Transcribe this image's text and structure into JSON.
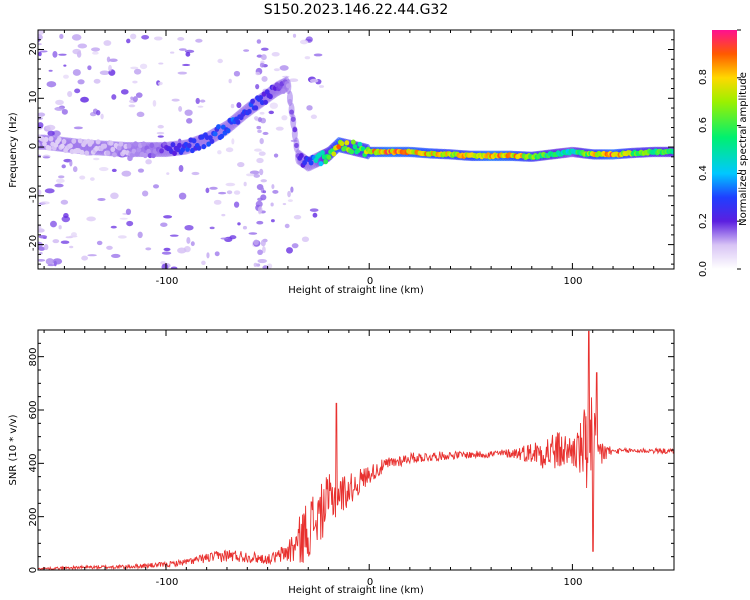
{
  "title": "S150.2023.146.22.44.G32",
  "colors": {
    "snr_line": "#e8312f",
    "spectrum_track": "#ff2a2a"
  },
  "chart_data": [
    {
      "type": "heatmap",
      "title": "S150.2023.146.22.44.G32",
      "xlabel": "Height of straight line (km)",
      "ylabel": "Frequency (Hz)",
      "xlim": [
        -163,
        150
      ],
      "ylim": [
        -25,
        24
      ],
      "xticks": [
        "-100",
        "0",
        "100"
      ],
      "yticks": [
        "20",
        "10",
        "0",
        "-10",
        "-20"
      ],
      "colorbar": {
        "label": "Normalized spectral amplitude",
        "range": [
          0,
          1
        ],
        "ticks": [
          "0.0",
          "0.2",
          "0.4",
          "0.6",
          "0.8"
        ],
        "colormap": "rainbow"
      },
      "track": {
        "x": [
          -160,
          -140,
          -120,
          -100,
          -90,
          -80,
          -70,
          -60,
          -50,
          -45,
          -40,
          -35,
          -30,
          -25,
          -20,
          -15,
          -10,
          -5,
          0,
          10,
          20,
          30,
          40,
          50,
          60,
          70,
          80,
          90,
          100,
          110,
          120,
          130,
          140,
          150
        ],
        "freq": [
          1,
          0,
          -0.5,
          -0.5,
          0,
          1.5,
          4,
          7.5,
          10.5,
          12,
          13,
          -2,
          -3.5,
          -2.5,
          -1.5,
          0.5,
          0,
          -0.5,
          -1,
          -1,
          -1,
          -1.3,
          -1.5,
          -1.8,
          -1.8,
          -1.8,
          -2,
          -1.5,
          -1,
          -1.5,
          -1.5,
          -1.2,
          -1,
          -1
        ],
        "amplitude": [
          0.1,
          0.1,
          0.12,
          0.2,
          0.3,
          0.3,
          0.35,
          0.32,
          0.25,
          0.2,
          0.15,
          0.2,
          0.3,
          0.5,
          0.65,
          0.9,
          0.7,
          0.6,
          0.85,
          0.95,
          0.9,
          0.88,
          0.8,
          0.85,
          0.95,
          0.9,
          0.75,
          0.6,
          0.5,
          0.8,
          0.95,
          0.7,
          0.65,
          0.6
        ]
      }
    },
    {
      "type": "line",
      "xlabel": "Height of straight line (km)",
      "ylabel": "SNR (10 * v/v)",
      "xlim": [
        -163,
        150
      ],
      "ylim": [
        0,
        900
      ],
      "xticks": [
        "-100",
        "0",
        "100"
      ],
      "yticks": [
        "0",
        "200",
        "400",
        "600",
        "800"
      ],
      "x": [
        -163,
        -140,
        -120,
        -100,
        -90,
        -80,
        -70,
        -60,
        -50,
        -45,
        -40,
        -35,
        -30,
        -25,
        -20,
        -15,
        -10,
        -5,
        0,
        10,
        20,
        30,
        40,
        50,
        60,
        70,
        80,
        90,
        100,
        105,
        108,
        110,
        112,
        120,
        130,
        140,
        150
      ],
      "y": [
        5,
        10,
        12,
        20,
        30,
        45,
        55,
        50,
        40,
        50,
        70,
        100,
        160,
        200,
        260,
        280,
        300,
        330,
        360,
        400,
        420,
        425,
        430,
        432,
        435,
        438,
        440,
        445,
        448,
        450,
        460,
        445,
        440,
        445,
        448,
        447,
        445
      ],
      "noise": [
        3,
        6,
        8,
        10,
        12,
        18,
        25,
        22,
        18,
        25,
        45,
        90,
        120,
        110,
        100,
        80,
        60,
        50,
        35,
        25,
        20,
        18,
        15,
        14,
        14,
        18,
        40,
        80,
        60,
        120,
        250,
        200,
        80,
        10,
        10,
        10,
        10
      ],
      "spikes": [
        {
          "x": -16,
          "y": 625
        },
        {
          "x": 108,
          "y": 895
        },
        {
          "x": 110,
          "y": 70
        },
        {
          "x": 112,
          "y": 740
        }
      ]
    }
  ]
}
